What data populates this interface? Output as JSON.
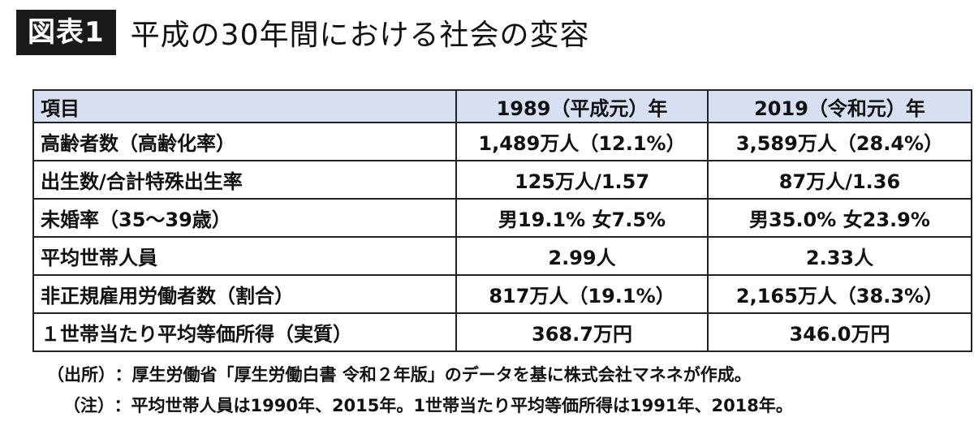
{
  "figure": {
    "badge": "図表1",
    "title": "平成の30年間における社会の変容"
  },
  "table": {
    "headers": [
      "項目",
      "1989（平成元）年",
      "2019（令和元）年"
    ],
    "rows": [
      [
        "高齢者数（高齢化率）",
        "1,489万人（12.1%）",
        "3,589万人（28.4%）"
      ],
      [
        "出生数/合計特殊出生率",
        "125万人/1.57",
        "87万人/1.36"
      ],
      [
        "未婚率（35〜39歳）",
        "男19.1% 女7.5%",
        "男35.0% 女23.9%"
      ],
      [
        "平均世帯人員",
        "2.99人",
        "2.33人"
      ],
      [
        "非正規雇用労働者数（割合）",
        "817万人（19.1%）",
        "2,165万人（38.3%）"
      ],
      [
        "１世帯当たり平均等価所得（実質）",
        "368.7万円",
        "346.0万円"
      ]
    ],
    "header_bg": "#d6e0f2"
  },
  "notes": {
    "source_tag": "（出所）",
    "source_text": "：厚生労働省「厚生労働白書 令和２年版」のデータを基に株式会社マネネが作成。",
    "caveat_tag": "（注）",
    "caveat_text": "：平均世帯人員は1990年、2015年。1世帯当たり平均等価所得は1991年、2018年。"
  }
}
